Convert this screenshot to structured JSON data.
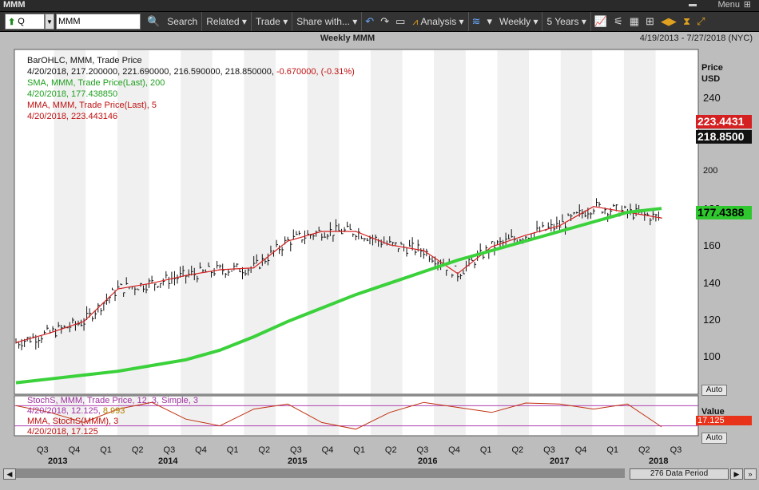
{
  "app": {
    "title": "MMM",
    "menu_label": "Menu"
  },
  "toolbar": {
    "symbol": "Q",
    "input_value": "MMM",
    "search": "Search",
    "related": "Related",
    "trade": "Trade",
    "share": "Share with...",
    "analysis": "Analysis",
    "period": "Weekly",
    "span": "5 Years"
  },
  "chart": {
    "title": "Weekly MMM",
    "range": "4/19/2013 - 7/27/2018 (NYC)",
    "price_label_line1": "Price",
    "price_label_line2": "USD",
    "auto_label": "Auto",
    "value_label": "Value",
    "legend": {
      "bar_line1": "BarOHLC, MMM, Trade Price",
      "bar_line2a": "4/20/2018, 217.200000, 221.690000, 216.590000, 218.850000, ",
      "bar_line2b": "-0.670000, (-0.31%)",
      "sma_line1": "SMA, MMM, Trade Price(Last),  200",
      "sma_line2": "4/20/2018, 177.438850",
      "mma_line1": "MMA, MMM, Trade Price(Last),  5",
      "mma_line2": "4/20/2018, 223.443146"
    },
    "tags": {
      "mma": "223.4431",
      "last": "218.8500",
      "sma": "177.4388",
      "stoch": "17.125"
    },
    "stoch_legend": {
      "line1": "StochS, MMM, Trade Price,  12, 3, Simple, 3",
      "line2a": "4/20/2018, 12.125, ",
      "line2b": "8.993",
      "line3": "MMA, StochS(MMM),  3",
      "line4": "4/20/2018, 17.125"
    },
    "yaxis_ticks": [
      "240",
      "220",
      "200",
      "180",
      "160",
      "140",
      "120",
      "100"
    ],
    "x_quarters": [
      "Q3",
      "Q4",
      "Q1",
      "Q2",
      "Q3",
      "Q4",
      "Q1",
      "Q2",
      "Q3",
      "Q4",
      "Q1",
      "Q2",
      "Q3",
      "Q4",
      "Q1",
      "Q2",
      "Q3",
      "Q4",
      "Q1",
      "Q2",
      "Q3"
    ],
    "x_years": [
      "2013",
      "2014",
      "2015",
      "2016",
      "2017",
      "2018"
    ],
    "data_period": "276 Data Period"
  },
  "chart_data": {
    "type": "line",
    "title": "Weekly MMM",
    "ylabel": "Price USD",
    "ylim": [
      80,
      260
    ],
    "x": [
      "Q3 2013",
      "Q4 2013",
      "Q1 2014",
      "Q2 2014",
      "Q3 2014",
      "Q4 2014",
      "Q1 2015",
      "Q2 2015",
      "Q3 2015",
      "Q4 2015",
      "Q1 2016",
      "Q2 2016",
      "Q3 2016",
      "Q4 2016",
      "Q1 2017",
      "Q2 2017",
      "Q3 2017",
      "Q4 2017",
      "Q1 2018",
      "Q2 2018"
    ],
    "series": [
      {
        "name": "MMA, MMM, Trade Price(Last), 5",
        "values": [
          107,
          112,
          118,
          135,
          138,
          142,
          145,
          146,
          160,
          165,
          165,
          158,
          155,
          143,
          157,
          163,
          168,
          178,
          175,
          172
        ]
      },
      {
        "name": "SMA, MMM, Trade Price(Last), 200",
        "values": [
          86,
          88,
          90,
          92,
          95,
          98,
          103,
          110,
          118,
          125,
          132,
          138,
          144,
          150,
          155,
          160,
          165,
          170,
          175,
          177
        ]
      }
    ],
    "stoch_values": [
      80,
      60,
      30,
      70,
      90,
      40,
      20,
      70,
      85,
      30,
      10,
      60,
      90,
      75,
      60,
      88,
      85,
      70,
      85,
      17
    ]
  },
  "colors": {
    "sma": "#3ad13a",
    "mma": "#d42020",
    "stoch": "#c89010",
    "last_tag": "#111111"
  }
}
